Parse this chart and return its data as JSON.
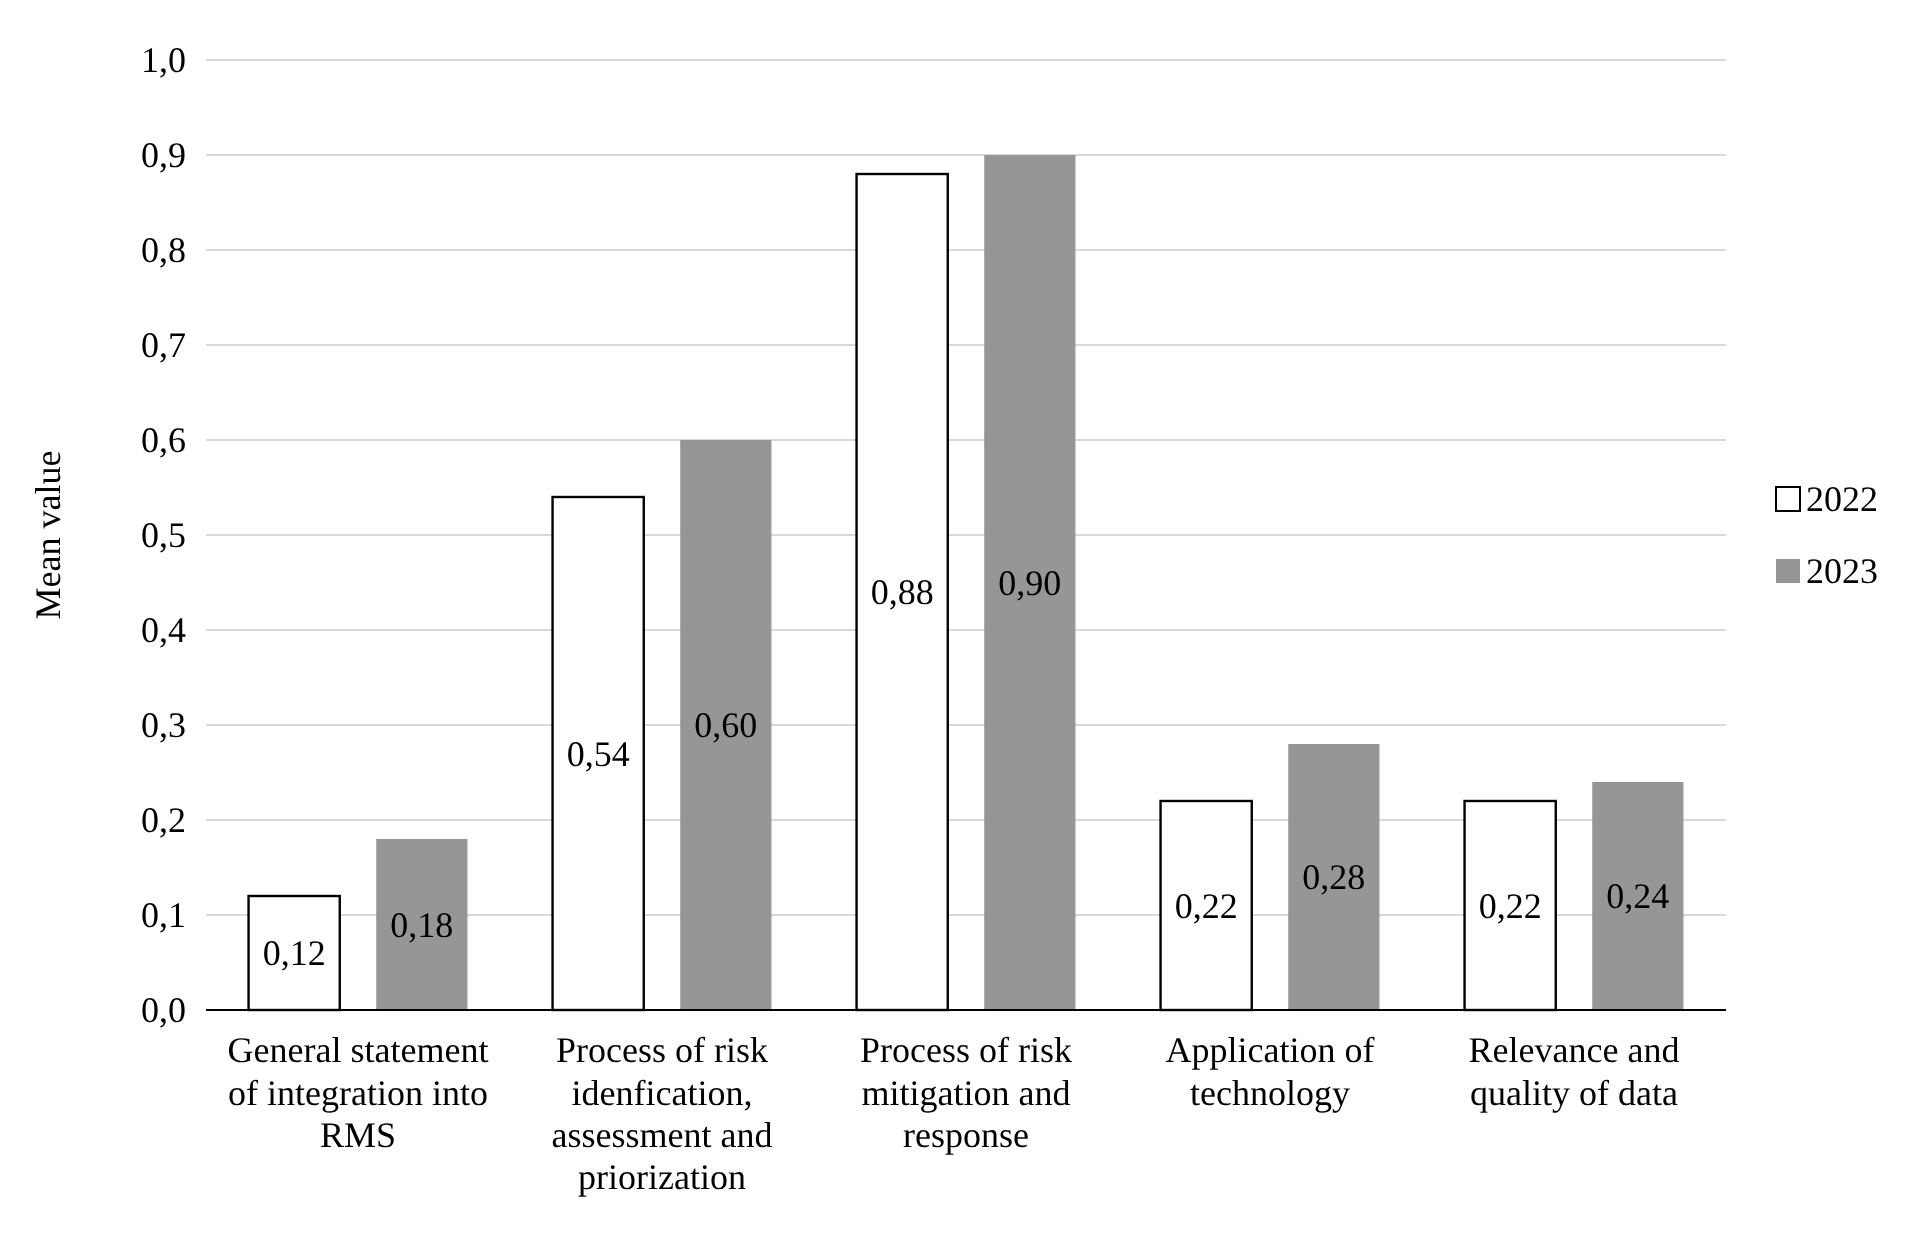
{
  "chart_data": {
    "type": "bar",
    "ylabel": "Mean value",
    "categories": [
      "General statement of integration into RMS",
      "Process of risk idenfication, assessment and priorization",
      "Process of risk mitigation and response",
      "Application of technology",
      "Relevance and quality of data"
    ],
    "series": [
      {
        "name": "2022",
        "color": "#ffffff",
        "values": [
          0.12,
          0.54,
          0.88,
          0.22,
          0.22
        ],
        "value_labels": [
          "0,12",
          "0,54",
          "0,88",
          "0,22",
          "0,22"
        ]
      },
      {
        "name": "2023",
        "color": "#969696",
        "values": [
          0.18,
          0.6,
          0.9,
          0.28,
          0.24
        ],
        "value_labels": [
          "0,18",
          "0,60",
          "0,90",
          "0,28",
          "0,24"
        ]
      }
    ],
    "ylim": [
      0,
      1
    ],
    "yticks": [
      {
        "value": 0,
        "label": "0,0"
      },
      {
        "value": 0.1,
        "label": "0,1"
      },
      {
        "value": 0.2,
        "label": "0,2"
      },
      {
        "value": 0.3,
        "label": "0,3"
      },
      {
        "value": 0.4,
        "label": "0,4"
      },
      {
        "value": 0.5,
        "label": "0,5"
      },
      {
        "value": 0.6,
        "label": "0,6"
      },
      {
        "value": 0.7,
        "label": "0,7"
      },
      {
        "value": 0.8,
        "label": "0,8"
      },
      {
        "value": 0.9,
        "label": "0,9"
      },
      {
        "value": 1,
        "label": "1,0"
      }
    ],
    "grid": "y",
    "legend": "right"
  }
}
